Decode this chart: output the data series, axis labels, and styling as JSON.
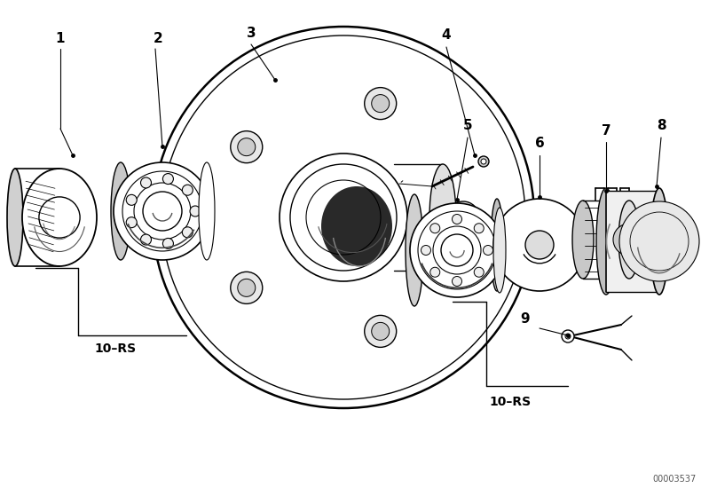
{
  "bg_color": "#ffffff",
  "fig_width": 7.99,
  "fig_height": 5.59,
  "dpi": 100,
  "catalog_id": "00003537",
  "line_color": "#000000",
  "lw": 1.0,
  "xlim": [
    0,
    799
  ],
  "ylim": [
    0,
    559
  ]
}
